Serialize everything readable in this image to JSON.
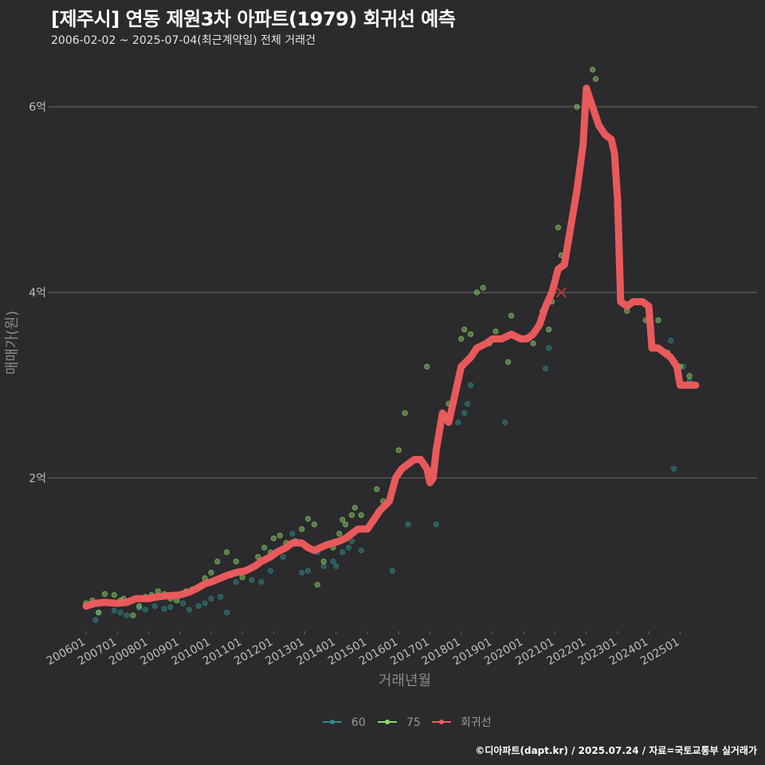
{
  "title": "[제주시] 연동 제원3차 아파트(1979) 회귀선 예측",
  "subtitle": "2006-02-02 ~ 2025-07-04(최근계약일) 전체 거래건",
  "footer": "©디아파트(dapt.kr) / 2025.07.24 / 자료=국토교통부 실거래가",
  "colors": {
    "background": "#2b2a2c",
    "grid": "#6b6b6b",
    "series_60": "#2f8a8a",
    "series_75": "#8fdc6a",
    "regression": "#f25c5e"
  },
  "chart_data": {
    "type": "scatter",
    "title": "[제주시] 연동 제원3차 아파트(1979) 회귀선 예측",
    "subtitle": "2006-02-02 ~ 2025-07-04(최근계약일) 전체 거래건",
    "xlabel": "거래년월",
    "ylabel": "매매가(원)",
    "x_range": [
      2006.0,
      2025.6
    ],
    "ylim": [
      0.35,
      6.55
    ],
    "y_unit": "억",
    "y_ticks": [
      {
        "value": 2,
        "label": "2억"
      },
      {
        "value": 4,
        "label": "4억"
      },
      {
        "value": 6,
        "label": "6억"
      }
    ],
    "x_ticks": [
      {
        "value": 2006,
        "label": "200601"
      },
      {
        "value": 2007,
        "label": "200701"
      },
      {
        "value": 2008,
        "label": "200801"
      },
      {
        "value": 2009,
        "label": "200901"
      },
      {
        "value": 2010,
        "label": "201001"
      },
      {
        "value": 2011,
        "label": "201101"
      },
      {
        "value": 2012,
        "label": "201201"
      },
      {
        "value": 2013,
        "label": "201301"
      },
      {
        "value": 2014,
        "label": "201401"
      },
      {
        "value": 2015,
        "label": "201501"
      },
      {
        "value": 2016,
        "label": "201601"
      },
      {
        "value": 2017,
        "label": "201701"
      },
      {
        "value": 2018,
        "label": "201801"
      },
      {
        "value": 2019,
        "label": "201901"
      },
      {
        "value": 2020,
        "label": "202001"
      },
      {
        "value": 2021,
        "label": "202101"
      },
      {
        "value": 2022,
        "label": "202201"
      },
      {
        "value": 2023,
        "label": "202301"
      },
      {
        "value": 2024,
        "label": "202401"
      },
      {
        "value": 2025,
        "label": "202501"
      }
    ],
    "legend": {
      "position": "bottom",
      "entries": [
        "60",
        "75",
        "회귀선"
      ]
    },
    "series": [
      {
        "name": "60",
        "kind": "points",
        "points": [
          [
            2006.3,
            0.47
          ],
          [
            2006.4,
            0.55
          ],
          [
            2006.9,
            0.57
          ],
          [
            2007.1,
            0.55
          ],
          [
            2007.3,
            0.52
          ],
          [
            2007.7,
            0.6
          ],
          [
            2007.9,
            0.58
          ],
          [
            2008.2,
            0.62
          ],
          [
            2008.5,
            0.59
          ],
          [
            2008.7,
            0.61
          ],
          [
            2009.1,
            0.65
          ],
          [
            2009.3,
            0.58
          ],
          [
            2009.6,
            0.62
          ],
          [
            2009.8,
            0.65
          ],
          [
            2010.0,
            0.7
          ],
          [
            2010.3,
            0.72
          ],
          [
            2010.5,
            0.55
          ],
          [
            2010.8,
            0.88
          ],
          [
            2011.3,
            0.9
          ],
          [
            2011.6,
            0.88
          ],
          [
            2011.9,
            1.0
          ],
          [
            2012.3,
            1.15
          ],
          [
            2012.6,
            1.4
          ],
          [
            2012.9,
            0.98
          ],
          [
            2013.1,
            1.0
          ],
          [
            2013.4,
            1.2
          ],
          [
            2013.6,
            1.05
          ],
          [
            2013.9,
            1.1
          ],
          [
            2014.0,
            1.05
          ],
          [
            2014.2,
            1.2
          ],
          [
            2014.4,
            1.25
          ],
          [
            2014.5,
            1.32
          ],
          [
            2014.8,
            1.22
          ],
          [
            2015.8,
            1.0
          ],
          [
            2016.3,
            1.5
          ],
          [
            2017.2,
            1.5
          ],
          [
            2017.9,
            2.6
          ],
          [
            2018.1,
            2.7
          ],
          [
            2018.2,
            2.8
          ],
          [
            2018.3,
            3.0
          ],
          [
            2019.4,
            2.6
          ],
          [
            2020.7,
            3.18
          ],
          [
            2020.8,
            3.4
          ],
          [
            2021.0,
            4.1
          ],
          [
            2024.7,
            3.48
          ],
          [
            2024.8,
            2.1
          ],
          [
            2025.1,
            3.2
          ],
          [
            2025.3,
            3.05
          ]
        ]
      },
      {
        "name": "75",
        "kind": "points",
        "points": [
          [
            2006.0,
            0.65
          ],
          [
            2006.2,
            0.68
          ],
          [
            2006.4,
            0.55
          ],
          [
            2006.6,
            0.75
          ],
          [
            2006.9,
            0.74
          ],
          [
            2007.1,
            0.68
          ],
          [
            2007.2,
            0.7
          ],
          [
            2007.5,
            0.52
          ],
          [
            2007.7,
            0.62
          ],
          [
            2007.9,
            0.72
          ],
          [
            2008.1,
            0.74
          ],
          [
            2008.3,
            0.78
          ],
          [
            2008.5,
            0.75
          ],
          [
            2008.7,
            0.7
          ],
          [
            2008.9,
            0.68
          ],
          [
            2009.2,
            0.78
          ],
          [
            2009.4,
            0.8
          ],
          [
            2009.6,
            0.82
          ],
          [
            2009.8,
            0.92
          ],
          [
            2010.0,
            0.98
          ],
          [
            2010.2,
            1.1
          ],
          [
            2010.5,
            1.2
          ],
          [
            2010.6,
            0.95
          ],
          [
            2010.8,
            1.1
          ],
          [
            2011.0,
            0.93
          ],
          [
            2011.2,
            1.02
          ],
          [
            2011.5,
            1.15
          ],
          [
            2011.7,
            1.25
          ],
          [
            2011.9,
            1.2
          ],
          [
            2012.0,
            1.35
          ],
          [
            2012.2,
            1.38
          ],
          [
            2012.4,
            1.3
          ],
          [
            2012.7,
            1.32
          ],
          [
            2012.9,
            1.45
          ],
          [
            2013.1,
            1.56
          ],
          [
            2013.3,
            1.5
          ],
          [
            2013.4,
            0.85
          ],
          [
            2013.6,
            1.1
          ],
          [
            2013.9,
            1.25
          ],
          [
            2014.1,
            1.4
          ],
          [
            2014.2,
            1.55
          ],
          [
            2014.3,
            1.5
          ],
          [
            2014.5,
            1.6
          ],
          [
            2014.6,
            1.68
          ],
          [
            2014.8,
            1.6
          ],
          [
            2015.0,
            1.45
          ],
          [
            2015.3,
            1.88
          ],
          [
            2015.5,
            1.75
          ],
          [
            2016.0,
            2.3
          ],
          [
            2016.2,
            2.7
          ],
          [
            2016.9,
            3.2
          ],
          [
            2017.5,
            2.65
          ],
          [
            2017.6,
            2.8
          ],
          [
            2018.0,
            3.5
          ],
          [
            2018.1,
            3.6
          ],
          [
            2018.3,
            3.55
          ],
          [
            2018.5,
            4.0
          ],
          [
            2018.7,
            4.05
          ],
          [
            2018.9,
            3.45
          ],
          [
            2019.1,
            3.58
          ],
          [
            2019.5,
            3.25
          ],
          [
            2019.6,
            3.75
          ],
          [
            2019.9,
            3.5
          ],
          [
            2020.3,
            3.45
          ],
          [
            2020.6,
            3.8
          ],
          [
            2020.8,
            3.6
          ],
          [
            2020.9,
            3.9
          ],
          [
            2021.1,
            4.7
          ],
          [
            2021.2,
            4.4
          ],
          [
            2021.7,
            6.0
          ],
          [
            2022.0,
            6.2
          ],
          [
            2022.2,
            6.4
          ],
          [
            2022.3,
            6.3
          ],
          [
            2023.3,
            3.8
          ],
          [
            2023.9,
            3.7
          ],
          [
            2024.3,
            3.7
          ],
          [
            2024.6,
            3.35
          ],
          [
            2025.0,
            3.2
          ],
          [
            2025.3,
            3.1
          ]
        ]
      },
      {
        "name": "회귀선",
        "kind": "line",
        "points": [
          [
            2006.0,
            0.62
          ],
          [
            2006.3,
            0.65
          ],
          [
            2006.6,
            0.66
          ],
          [
            2007.0,
            0.65
          ],
          [
            2007.3,
            0.66
          ],
          [
            2007.6,
            0.7
          ],
          [
            2008.0,
            0.7
          ],
          [
            2008.3,
            0.72
          ],
          [
            2008.6,
            0.73
          ],
          [
            2009.0,
            0.74
          ],
          [
            2009.3,
            0.77
          ],
          [
            2009.6,
            0.82
          ],
          [
            2009.8,
            0.86
          ],
          [
            2010.0,
            0.88
          ],
          [
            2010.3,
            0.92
          ],
          [
            2010.5,
            0.95
          ],
          [
            2010.8,
            0.98
          ],
          [
            2011.1,
            1.0
          ],
          [
            2011.4,
            1.05
          ],
          [
            2011.6,
            1.1
          ],
          [
            2011.9,
            1.15
          ],
          [
            2012.1,
            1.2
          ],
          [
            2012.4,
            1.25
          ],
          [
            2012.6,
            1.3
          ],
          [
            2012.9,
            1.3
          ],
          [
            2013.1,
            1.25
          ],
          [
            2013.3,
            1.22
          ],
          [
            2013.5,
            1.25
          ],
          [
            2013.7,
            1.28
          ],
          [
            2013.9,
            1.3
          ],
          [
            2014.1,
            1.32
          ],
          [
            2014.3,
            1.35
          ],
          [
            2014.5,
            1.4
          ],
          [
            2014.7,
            1.45
          ],
          [
            2015.0,
            1.45
          ],
          [
            2015.2,
            1.55
          ],
          [
            2015.4,
            1.65
          ],
          [
            2015.7,
            1.75
          ],
          [
            2015.9,
            2.0
          ],
          [
            2016.1,
            2.1
          ],
          [
            2016.3,
            2.15
          ],
          [
            2016.5,
            2.2
          ],
          [
            2016.7,
            2.2
          ],
          [
            2016.9,
            2.1
          ],
          [
            2017.0,
            1.95
          ],
          [
            2017.1,
            2.0
          ],
          [
            2017.2,
            2.3
          ],
          [
            2017.4,
            2.7
          ],
          [
            2017.6,
            2.6
          ],
          [
            2017.8,
            2.9
          ],
          [
            2018.0,
            3.2
          ],
          [
            2018.3,
            3.3
          ],
          [
            2018.5,
            3.4
          ],
          [
            2018.8,
            3.45
          ],
          [
            2019.0,
            3.5
          ],
          [
            2019.3,
            3.5
          ],
          [
            2019.6,
            3.55
          ],
          [
            2019.9,
            3.5
          ],
          [
            2020.1,
            3.5
          ],
          [
            2020.3,
            3.55
          ],
          [
            2020.5,
            3.65
          ],
          [
            2020.7,
            3.85
          ],
          [
            2020.9,
            4.0
          ],
          [
            2021.1,
            4.25
          ],
          [
            2021.3,
            4.3
          ],
          [
            2021.5,
            4.7
          ],
          [
            2021.7,
            5.1
          ],
          [
            2021.9,
            5.6
          ],
          [
            2022.0,
            6.2
          ],
          [
            2022.2,
            6.0
          ],
          [
            2022.4,
            5.8
          ],
          [
            2022.6,
            5.7
          ],
          [
            2022.8,
            5.65
          ],
          [
            2022.9,
            5.5
          ],
          [
            2023.0,
            5.0
          ],
          [
            2023.1,
            3.9
          ],
          [
            2023.3,
            3.85
          ],
          [
            2023.5,
            3.9
          ],
          [
            2023.8,
            3.9
          ],
          [
            2024.0,
            3.85
          ],
          [
            2024.1,
            3.4
          ],
          [
            2024.3,
            3.4
          ],
          [
            2024.5,
            3.35
          ],
          [
            2024.7,
            3.3
          ],
          [
            2024.9,
            3.2
          ],
          [
            2025.0,
            3.0
          ],
          [
            2025.2,
            3.0
          ],
          [
            2025.5,
            3.0
          ]
        ]
      }
    ],
    "annotations": [
      {
        "label": "예측 마커",
        "x": 2021.2,
        "y": 4.0,
        "marker": "x"
      }
    ]
  }
}
